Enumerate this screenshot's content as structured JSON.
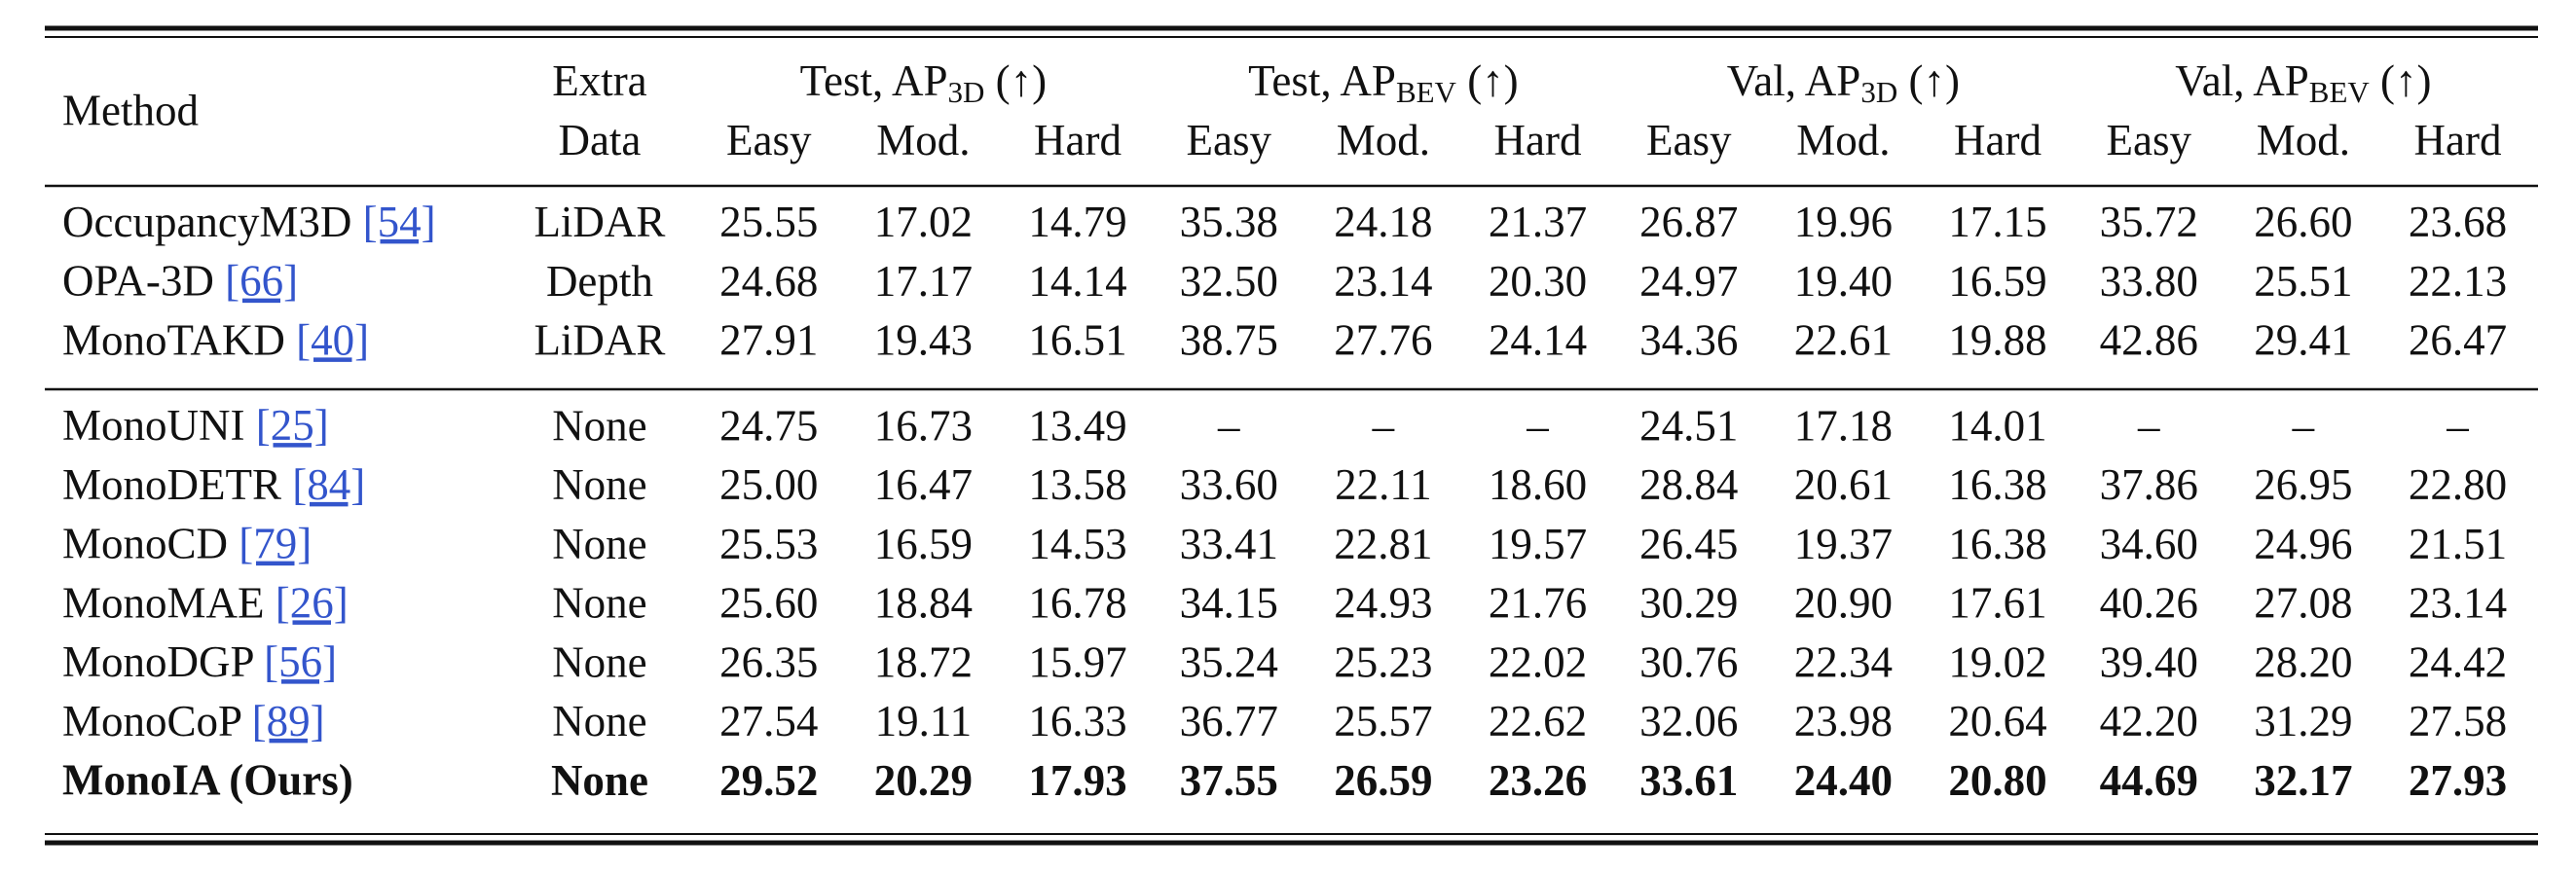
{
  "table": {
    "header": {
      "method": "Method",
      "extra": [
        "Extra",
        "Data"
      ],
      "groups": [
        {
          "prefix": "Test, AP",
          "sub": "3D",
          "suffix": " (↑)"
        },
        {
          "prefix": "Test, AP",
          "sub": "BEV",
          "suffix": " (↑)"
        },
        {
          "prefix": "Val, AP",
          "sub": "3D",
          "suffix": " (↑)"
        },
        {
          "prefix": "Val, AP",
          "sub": "BEV",
          "suffix": " (↑)"
        }
      ],
      "columns": [
        "Easy",
        "Mod.",
        "Hard",
        "Easy",
        "Mod.",
        "Hard",
        "Easy",
        "Mod.",
        "Hard",
        "Easy",
        "Mod.",
        "Hard"
      ]
    },
    "sections": [
      [
        {
          "method": "OccupancyM3D",
          "ref": "[54]",
          "extra": "LiDAR",
          "values": [
            "25.55",
            "17.02",
            "14.79",
            "35.38",
            "24.18",
            "21.37",
            "26.87",
            "19.96",
            "17.15",
            "35.72",
            "26.60",
            "23.68"
          ]
        },
        {
          "method": "OPA-3D",
          "ref": "[66]",
          "extra": "Depth",
          "values": [
            "24.68",
            "17.17",
            "14.14",
            "32.50",
            "23.14",
            "20.30",
            "24.97",
            "19.40",
            "16.59",
            "33.80",
            "25.51",
            "22.13"
          ]
        },
        {
          "method": "MonoTAKD",
          "ref": "[40]",
          "extra": "LiDAR",
          "values": [
            "27.91",
            "19.43",
            "16.51",
            "38.75",
            "27.76",
            "24.14",
            "34.36",
            "22.61",
            "19.88",
            "42.86",
            "29.41",
            "26.47"
          ]
        }
      ],
      [
        {
          "method": "MonoUNI",
          "ref": "[25]",
          "extra": "None",
          "values": [
            "24.75",
            "16.73",
            "13.49",
            "–",
            "–",
            "–",
            "24.51",
            "17.18",
            "14.01",
            "–",
            "–",
            "–"
          ]
        },
        {
          "method": "MonoDETR",
          "ref": "[84]",
          "extra": "None",
          "values": [
            "25.00",
            "16.47",
            "13.58",
            "33.60",
            "22.11",
            "18.60",
            "28.84",
            "20.61",
            "16.38",
            "37.86",
            "26.95",
            "22.80"
          ]
        },
        {
          "method": "MonoCD",
          "ref": "[79]",
          "extra": "None",
          "values": [
            "25.53",
            "16.59",
            "14.53",
            "33.41",
            "22.81",
            "19.57",
            "26.45",
            "19.37",
            "16.38",
            "34.60",
            "24.96",
            "21.51"
          ]
        },
        {
          "method": "MonoMAE",
          "ref": "[26]",
          "extra": "None",
          "values": [
            "25.60",
            "18.84",
            "16.78",
            "34.15",
            "24.93",
            "21.76",
            "30.29",
            "20.90",
            "17.61",
            "40.26",
            "27.08",
            "23.14"
          ]
        },
        {
          "method": "MonoDGP",
          "ref": "[56]",
          "extra": "None",
          "values": [
            "26.35",
            "18.72",
            "15.97",
            "35.24",
            "25.23",
            "22.02",
            "30.76",
            "22.34",
            "19.02",
            "39.40",
            "28.20",
            "24.42"
          ]
        },
        {
          "method": "MonoCoP",
          "ref": "[89]",
          "extra": "None",
          "values": [
            "27.54",
            "19.11",
            "16.33",
            "36.77",
            "25.57",
            "22.62",
            "32.06",
            "23.98",
            "20.64",
            "42.20",
            "31.29",
            "27.58"
          ]
        },
        {
          "method": "MonoIA (Ours)",
          "extra": "None",
          "values": [
            "29.52",
            "20.29",
            "17.93",
            "37.55",
            "26.59",
            "23.26",
            "33.61",
            "24.40",
            "20.80",
            "44.69",
            "32.17",
            "27.93"
          ]
        }
      ]
    ]
  }
}
